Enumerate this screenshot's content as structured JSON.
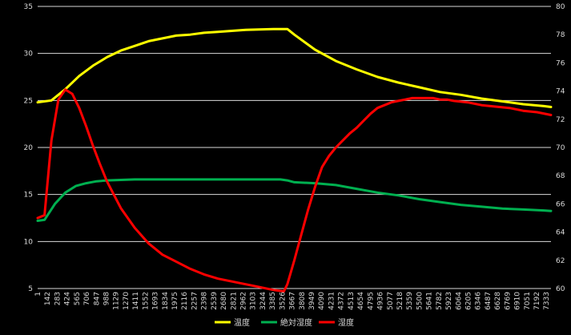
{
  "chart_data": {
    "type": "line",
    "title": "",
    "xlabel": "",
    "ylabel": "",
    "y2label": "",
    "grid": "horizontal",
    "legend_position": "bottom",
    "background": "#000000",
    "ylim": [
      5,
      35
    ],
    "y_ticks": [
      5,
      10,
      15,
      20,
      25,
      30,
      35
    ],
    "y2lim": [
      60,
      80
    ],
    "y2_ticks": [
      60,
      62,
      64,
      66,
      68,
      70,
      72,
      74,
      76,
      78,
      80
    ],
    "xlim": [
      1,
      7400
    ],
    "x_tick_labels": [
      1,
      142,
      283,
      424,
      565,
      706,
      847,
      988,
      1129,
      1270,
      1411,
      1552,
      1693,
      1834,
      1975,
      2116,
      2257,
      2398,
      2539,
      2680,
      2821,
      2962,
      3103,
      3244,
      3385,
      3526,
      3667,
      3808,
      3949,
      4090,
      4231,
      4372,
      4513,
      4654,
      4795,
      4936,
      5077,
      5218,
      5359,
      5500,
      5641,
      5782,
      5923,
      6064,
      6205,
      6346,
      6487,
      6628,
      6769,
      6910,
      7051,
      7192,
      7333
    ],
    "series": [
      {
        "name": "温度",
        "axis": "left",
        "color": "#ffff00",
        "x": [
          1,
          200,
          400,
          600,
          800,
          1000,
          1200,
          1400,
          1600,
          1800,
          2000,
          2200,
          2400,
          2600,
          2800,
          3000,
          3200,
          3400,
          3600,
          3700,
          4000,
          4300,
          4600,
          4900,
          5200,
          5500,
          5800,
          6100,
          6400,
          6700,
          7000,
          7300,
          7400
        ],
        "values": [
          24.8,
          25.0,
          26.2,
          27.6,
          28.7,
          29.6,
          30.3,
          30.8,
          31.3,
          31.6,
          31.9,
          32.0,
          32.2,
          32.3,
          32.4,
          32.5,
          32.55,
          32.6,
          32.6,
          32.0,
          30.4,
          29.2,
          28.3,
          27.5,
          26.9,
          26.4,
          25.9,
          25.6,
          25.2,
          24.9,
          24.6,
          24.4,
          24.3
        ]
      },
      {
        "name": "絶対湿度",
        "axis": "left",
        "color": "#00b050",
        "x": [
          1,
          100,
          250,
          400,
          550,
          700,
          850,
          1000,
          1200,
          1400,
          2000,
          2500,
          3000,
          3500,
          3600,
          3700,
          4000,
          4300,
          4600,
          4900,
          5200,
          5500,
          5800,
          6100,
          6400,
          6700,
          7000,
          7300,
          7400
        ],
        "values": [
          12.2,
          12.3,
          14.0,
          15.2,
          15.9,
          16.2,
          16.4,
          16.5,
          16.55,
          16.6,
          16.6,
          16.6,
          16.6,
          16.6,
          16.5,
          16.3,
          16.2,
          16.0,
          15.6,
          15.2,
          14.9,
          14.5,
          14.2,
          13.9,
          13.7,
          13.5,
          13.4,
          13.3,
          13.25
        ]
      },
      {
        "name": "湿度",
        "axis": "right",
        "color": "#ff0000",
        "x": [
          1,
          100,
          200,
          300,
          400,
          500,
          600,
          700,
          800,
          900,
          1000,
          1200,
          1400,
          1600,
          1800,
          2000,
          2200,
          2400,
          2600,
          2800,
          3000,
          3200,
          3400,
          3550,
          3600,
          3700,
          3800,
          3900,
          4000,
          4100,
          4200,
          4300,
          4400,
          4500,
          4600,
          4700,
          4800,
          4900,
          5000,
          5100,
          5200,
          5300,
          5400,
          5500,
          5600,
          5700,
          5800,
          5900,
          6000,
          6200,
          6400,
          6600,
          6800,
          7000,
          7200,
          7400
        ],
        "values": [
          65,
          65.2,
          70.5,
          73.4,
          74.1,
          73.8,
          72.8,
          71.5,
          70.1,
          68.8,
          67.6,
          65.7,
          64.3,
          63.2,
          62.4,
          61.9,
          61.4,
          61.0,
          60.7,
          60.5,
          60.3,
          60.1,
          59.9,
          59.8,
          60.3,
          62.0,
          63.8,
          65.6,
          67.2,
          68.6,
          69.4,
          70.0,
          70.5,
          71.0,
          71.4,
          71.9,
          72.4,
          72.8,
          73.0,
          73.2,
          73.3,
          73.4,
          73.5,
          73.5,
          73.5,
          73.5,
          73.4,
          73.4,
          73.3,
          73.2,
          73.0,
          72.9,
          72.8,
          72.6,
          72.5,
          72.3
        ]
      }
    ]
  }
}
